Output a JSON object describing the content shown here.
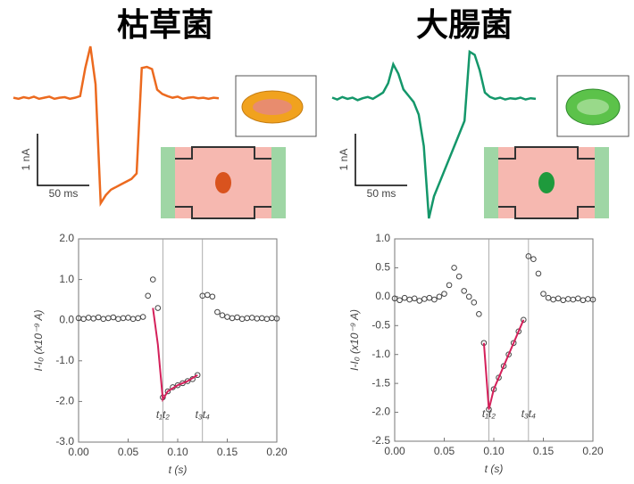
{
  "chart_data": [
    {
      "type": "line",
      "title": "枯草菌",
      "scale_bar_labels": [
        "1 nA",
        "50 ms"
      ],
      "trace_color": "#ec6a1f",
      "point_color": "#444444",
      "x": [
        0,
        0.005,
        0.01,
        0.015,
        0.02,
        0.025,
        0.03,
        0.035,
        0.04,
        0.045,
        0.05,
        0.055,
        0.06,
        0.065,
        0.07,
        0.075,
        0.08,
        0.085,
        0.09,
        0.095,
        0.1,
        0.105,
        0.11,
        0.115,
        0.12,
        0.125,
        0.13,
        0.135,
        0.14,
        0.145,
        0.15,
        0.155,
        0.16,
        0.165,
        0.17,
        0.175,
        0.18,
        0.185,
        0.19,
        0.195,
        0.2
      ],
      "values": [
        0.05,
        0.03,
        0.06,
        0.04,
        0.07,
        0.03,
        0.05,
        0.07,
        0.03,
        0.05,
        0.06,
        0.03,
        0.05,
        0.08,
        0.6,
        1.0,
        0.3,
        -1.9,
        -1.75,
        -1.65,
        -1.6,
        -1.55,
        -1.5,
        -1.45,
        -1.35,
        0.6,
        0.62,
        0.58,
        0.2,
        0.12,
        0.08,
        0.05,
        0.07,
        0.03,
        0.05,
        0.06,
        0.04,
        0.05,
        0.03,
        0.05,
        0.04
      ],
      "fit": {
        "color": "#d4205a",
        "x": [
          0.075,
          0.08,
          0.085,
          0.09,
          0.1,
          0.11,
          0.12
        ],
        "values": [
          0.3,
          -0.6,
          -1.95,
          -1.75,
          -1.6,
          -1.5,
          -1.35
        ]
      },
      "markers": [
        {
          "label": "t₁t₂",
          "x": 0.085
        },
        {
          "label": "t₃t₄",
          "x": 0.125
        }
      ],
      "xlim": [
        0,
        0.2
      ],
      "ylim": [
        -3.0,
        2.0
      ],
      "xticks": [
        {
          "value": 0,
          "label": "0.00"
        },
        {
          "value": 0.05,
          "label": "0.05"
        },
        {
          "value": 0.1,
          "label": "0.10"
        },
        {
          "value": 0.15,
          "label": "0.15"
        },
        {
          "value": 0.2,
          "label": "0.20"
        }
      ],
      "yticks": [
        {
          "value": -3,
          "label": "-3.0"
        },
        {
          "value": -2,
          "label": "-2.0"
        },
        {
          "value": -1,
          "label": "-1.0"
        },
        {
          "value": 0,
          "label": "0.0"
        },
        {
          "value": 1,
          "label": "1.0"
        },
        {
          "value": 2,
          "label": "2.0"
        }
      ],
      "xlabel": "t (s)",
      "ylabel": "I-I₀ (x10⁻⁹ A)"
    },
    {
      "type": "line",
      "title": "大腸菌",
      "scale_bar_labels": [
        "1 nA",
        "50 ms"
      ],
      "trace_color": "#14976a",
      "point_color": "#444444",
      "x": [
        0,
        0.005,
        0.01,
        0.015,
        0.02,
        0.025,
        0.03,
        0.035,
        0.04,
        0.045,
        0.05,
        0.055,
        0.06,
        0.065,
        0.07,
        0.075,
        0.08,
        0.085,
        0.09,
        0.095,
        0.1,
        0.105,
        0.11,
        0.115,
        0.12,
        0.125,
        0.13,
        0.135,
        0.14,
        0.145,
        0.15,
        0.155,
        0.16,
        0.165,
        0.17,
        0.175,
        0.18,
        0.185,
        0.19,
        0.195,
        0.2
      ],
      "values": [
        -0.03,
        -0.06,
        -0.02,
        -0.05,
        -0.03,
        -0.07,
        -0.04,
        -0.02,
        -0.05,
        0.0,
        0.05,
        0.2,
        0.5,
        0.35,
        0.1,
        0.0,
        -0.1,
        -0.3,
        -0.8,
        -1.95,
        -1.6,
        -1.4,
        -1.2,
        -1.0,
        -0.8,
        -0.6,
        -0.4,
        0.7,
        0.65,
        0.4,
        0.05,
        -0.02,
        -0.05,
        -0.03,
        -0.06,
        -0.04,
        -0.05,
        -0.03,
        -0.06,
        -0.04,
        -0.05
      ],
      "fit": {
        "color": "#d4205a",
        "x": [
          0.09,
          0.095,
          0.1,
          0.11,
          0.12,
          0.13
        ],
        "values": [
          -0.8,
          -1.95,
          -1.6,
          -1.2,
          -0.8,
          -0.4
        ]
      },
      "markers": [
        {
          "label": "t₁t₂",
          "x": 0.095
        },
        {
          "label": "t₃t₄",
          "x": 0.135
        }
      ],
      "xlim": [
        0,
        0.2
      ],
      "ylim": [
        -2.5,
        1.0
      ],
      "xticks": [
        {
          "value": 0,
          "label": "0.00"
        },
        {
          "value": 0.05,
          "label": "0.05"
        },
        {
          "value": 0.1,
          "label": "0.10"
        },
        {
          "value": 0.15,
          "label": "0.15"
        },
        {
          "value": 0.2,
          "label": "0.20"
        }
      ],
      "yticks": [
        {
          "value": -2.5,
          "label": "-2.5"
        },
        {
          "value": -2,
          "label": "-2.0"
        },
        {
          "value": -1.5,
          "label": "-1.5"
        },
        {
          "value": -1,
          "label": "-1.0"
        },
        {
          "value": -0.5,
          "label": "-0.5"
        },
        {
          "value": 0,
          "label": "0.0"
        },
        {
          "value": 0.5,
          "label": "0.5"
        },
        {
          "value": 1,
          "label": "1.0"
        }
      ],
      "xlabel": "t (s)",
      "ylabel": "I-I₀ (x10⁻⁹ A)"
    }
  ]
}
